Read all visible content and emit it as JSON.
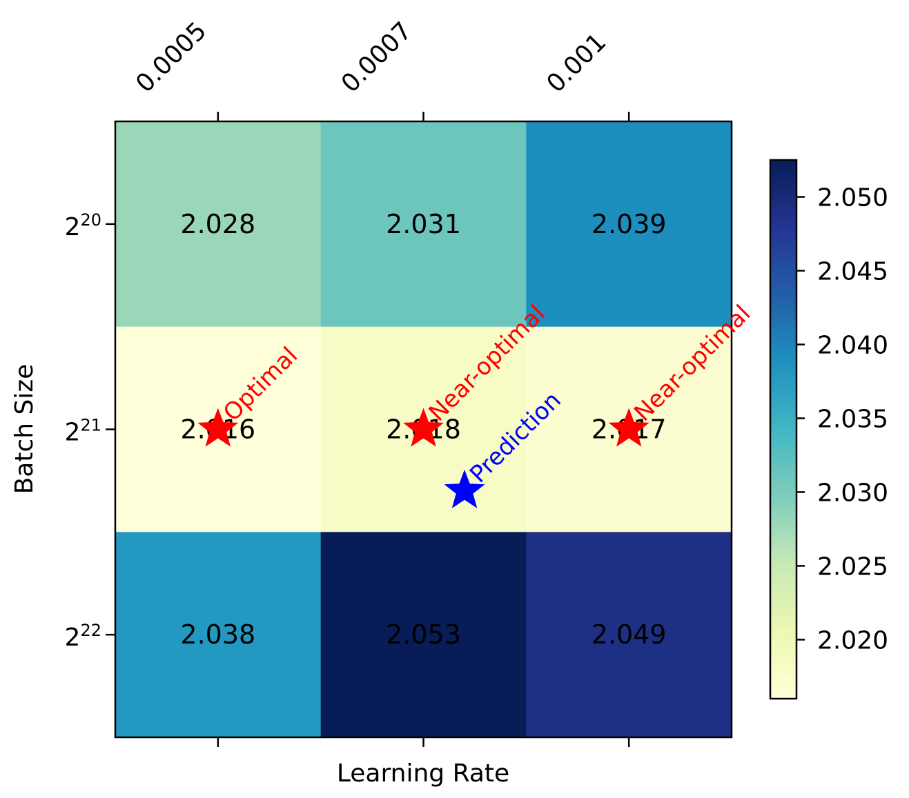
{
  "chart_data": {
    "type": "heatmap",
    "title": "",
    "xlabel": "Learning Rate",
    "ylabel": "Batch Size",
    "x_categories": [
      "0.0005",
      "0.0007",
      "0.001"
    ],
    "y_categories": [
      {
        "base": "2",
        "exp": "20"
      },
      {
        "base": "2",
        "exp": "21"
      },
      {
        "base": "2",
        "exp": "22"
      }
    ],
    "values": [
      [
        2.028,
        2.031,
        2.039
      ],
      [
        2.016,
        2.018,
        2.017
      ],
      [
        2.038,
        2.053,
        2.049
      ]
    ],
    "value_labels": [
      [
        "2.028",
        "2.031",
        "2.039"
      ],
      [
        "2.016",
        "2.018",
        "2.017"
      ],
      [
        "2.038",
        "2.053",
        "2.049"
      ]
    ],
    "colormap": "YlGnBu",
    "colorbar": {
      "range": [
        2.016,
        2.0525
      ],
      "ticks": [
        2.02,
        2.025,
        2.03,
        2.035,
        2.04,
        2.045,
        2.05
      ],
      "tick_labels": [
        "2.020",
        "2.025",
        "2.030",
        "2.035",
        "2.040",
        "2.045",
        "2.050"
      ]
    },
    "grid": false,
    "markers": [
      {
        "label": "Optimal",
        "x": 0,
        "y": 1,
        "color": "#ff0000"
      },
      {
        "label": "Near-optimal",
        "x": 1,
        "y": 1,
        "color": "#ff0000"
      },
      {
        "label": "Near-optimal",
        "x": 2,
        "y": 1,
        "color": "#ff0000"
      },
      {
        "label": "Prediction",
        "x": 1.2,
        "y": 1.3,
        "color": "#0000ff"
      }
    ]
  }
}
